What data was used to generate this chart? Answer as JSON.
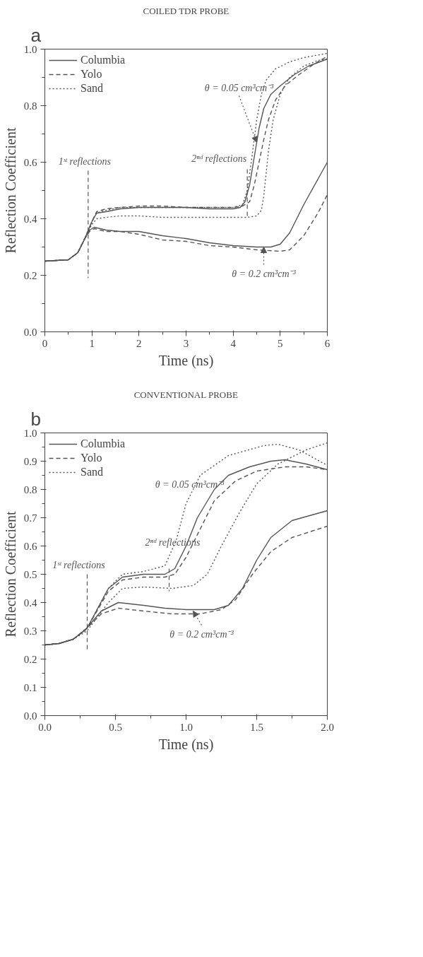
{
  "chart_data": [
    {
      "type": "line",
      "title": "COILED TDR PROBE",
      "xlabel": "Time (ns)",
      "ylabel": "Reflection Coefficient",
      "xlim": [
        0,
        6
      ],
      "ylim": [
        0,
        1
      ],
      "xticks": [
        0,
        1,
        2,
        3,
        4,
        5,
        6
      ],
      "yticks": [
        {
          "value": 0,
          "label": "0.0"
        },
        {
          "value": 0.2,
          "label": "0.2"
        },
        {
          "value": 0.4,
          "label": "0.4"
        },
        {
          "value": 0.6,
          "label": "0.6"
        },
        {
          "value": 0.8,
          "label": "0.8"
        },
        {
          "value": 1,
          "label": "1.0"
        }
      ],
      "grid": false,
      "legend": "top left",
      "annotations": [
        "a",
        {
          "text": "θ = 0.05 cm³cm⁻³",
          "x": 4.5,
          "y": 0.67
        },
        {
          "text": "θ = 0.2 cm³cm⁻³",
          "x": 4.65,
          "y": 0.3
        }
      ],
      "ref_lines": [
        {
          "axis": "x",
          "value": 0.92,
          "label": "1ˢᵗ reflections",
          "color": "#555555",
          "line_style": "dashed"
        },
        {
          "axis": "x",
          "value": 4.3,
          "label": "2ⁿᵈ reflections",
          "color": "#555555",
          "line_style": "dashed"
        }
      ],
      "series": [
        {
          "name": "Columbia",
          "color": "#555555",
          "line_style": "solid",
          "x": [
            0,
            0.5,
            0.7,
            0.85,
            1.0,
            1.1,
            1.3,
            1.6,
            2.0,
            2.5,
            3.0,
            3.5,
            4.0,
            4.15,
            4.25,
            4.35,
            4.45,
            4.55,
            4.65,
            4.8,
            5.0,
            5.3,
            5.6,
            6.0
          ],
          "values": [
            0.25,
            0.255,
            0.28,
            0.33,
            0.39,
            0.42,
            0.425,
            0.435,
            0.44,
            0.44,
            0.44,
            0.435,
            0.435,
            0.44,
            0.46,
            0.52,
            0.62,
            0.72,
            0.79,
            0.84,
            0.87,
            0.91,
            0.94,
            0.965
          ]
        },
        {
          "name": "Yolo",
          "color": "#555555",
          "line_style": "dashed",
          "x": [
            0,
            0.5,
            0.7,
            0.85,
            1.0,
            1.1,
            1.3,
            1.6,
            2.0,
            2.5,
            3.0,
            3.5,
            4.0,
            4.2,
            4.35,
            4.45,
            4.55,
            4.65,
            4.75,
            4.9,
            5.1,
            5.4,
            5.7,
            6.0
          ],
          "values": [
            0.25,
            0.255,
            0.28,
            0.33,
            0.39,
            0.425,
            0.435,
            0.44,
            0.445,
            0.445,
            0.44,
            0.44,
            0.44,
            0.445,
            0.46,
            0.52,
            0.6,
            0.68,
            0.75,
            0.82,
            0.87,
            0.91,
            0.945,
            0.975
          ]
        },
        {
          "name": "Sand",
          "color": "#555555",
          "line_style": "dotted",
          "x": [
            0,
            0.5,
            0.7,
            0.85,
            1.0,
            1.1,
            1.3,
            1.6,
            2.0,
            2.5,
            3.0,
            3.5,
            4.0,
            4.2,
            4.3,
            4.4,
            4.5,
            4.6,
            4.7,
            4.9,
            5.2,
            5.5,
            6.0
          ],
          "values": [
            0.25,
            0.255,
            0.28,
            0.33,
            0.39,
            0.42,
            0.43,
            0.44,
            0.44,
            0.44,
            0.44,
            0.44,
            0.44,
            0.45,
            0.5,
            0.62,
            0.75,
            0.84,
            0.89,
            0.93,
            0.955,
            0.97,
            0.985
          ]
        },
        {
          "color": "#555555",
          "line_style": "dotted",
          "x": [
            0,
            0.5,
            0.7,
            0.85,
            1.0,
            1.1,
            1.3,
            1.6,
            2.0,
            2.5,
            3.0,
            3.5,
            4.0,
            4.3,
            4.5,
            4.6,
            4.65,
            4.7,
            4.75,
            4.85,
            5.0,
            5.2,
            5.5,
            5.8,
            6.0
          ],
          "values": [
            0.25,
            0.255,
            0.28,
            0.33,
            0.38,
            0.4,
            0.405,
            0.41,
            0.41,
            0.405,
            0.405,
            0.405,
            0.405,
            0.405,
            0.41,
            0.43,
            0.48,
            0.56,
            0.64,
            0.75,
            0.84,
            0.9,
            0.94,
            0.96,
            0.965
          ]
        },
        {
          "color": "#555555",
          "line_style": "solid",
          "x": [
            0,
            0.5,
            0.7,
            0.85,
            0.95,
            1.05,
            1.3,
            1.6,
            2.0,
            2.5,
            3.0,
            3.5,
            4.0,
            4.5,
            4.8,
            5.0,
            5.2,
            5.5,
            5.8,
            6.0
          ],
          "values": [
            0.25,
            0.255,
            0.28,
            0.33,
            0.36,
            0.37,
            0.36,
            0.355,
            0.355,
            0.34,
            0.33,
            0.315,
            0.305,
            0.3,
            0.3,
            0.31,
            0.35,
            0.45,
            0.54,
            0.6
          ]
        },
        {
          "color": "#555555",
          "line_style": "dashed",
          "x": [
            0,
            0.5,
            0.7,
            0.85,
            0.95,
            1.05,
            1.3,
            1.6,
            2.0,
            2.5,
            3.0,
            3.5,
            4.0,
            4.5,
            5.0,
            5.2,
            5.5,
            5.8,
            6.0
          ],
          "values": [
            0.25,
            0.255,
            0.28,
            0.33,
            0.355,
            0.365,
            0.355,
            0.355,
            0.345,
            0.325,
            0.32,
            0.305,
            0.3,
            0.29,
            0.285,
            0.29,
            0.34,
            0.42,
            0.485
          ]
        }
      ]
    },
    {
      "type": "line",
      "title": "CONVENTIONAL PROBE",
      "xlabel": "Time (ns)",
      "ylabel": "Reflection Coefficient",
      "xlim": [
        0,
        2
      ],
      "ylim": [
        0,
        1
      ],
      "xticks": [
        {
          "value": 0,
          "label": "0.0"
        },
        {
          "value": 0.5,
          "label": "0.5"
        },
        {
          "value": 1,
          "label": "1.0"
        },
        {
          "value": 1.5,
          "label": "1.5"
        },
        {
          "value": 2,
          "label": "2.0"
        }
      ],
      "yticks": [
        {
          "value": 0,
          "label": "0.0"
        },
        0.1,
        0.2,
        0.3,
        0.4,
        0.5,
        0.6,
        0.7,
        0.8,
        0.9,
        {
          "value": 1,
          "label": "1.0"
        }
      ],
      "grid": false,
      "legend": "top left",
      "annotations": [
        "b",
        {
          "text": "θ = 0.05 cm³cm⁻³",
          "x": 1.2,
          "y": 0.8
        },
        {
          "text": "θ = 0.2 cm³cm⁻³",
          "x": 1.05,
          "y": 0.37
        }
      ],
      "ref_lines": [
        {
          "axis": "x",
          "value": 0.3,
          "label": "1ˢᵗ reflections",
          "color": "#555555",
          "line_style": "dashed"
        },
        {
          "axis": "x",
          "value": 0.88,
          "label": "2ⁿᵈ reflections",
          "color": "#555555",
          "line_style": "dashed"
        }
      ],
      "series": [
        {
          "name": "Columbia",
          "color": "#555555",
          "line_style": "solid",
          "x": [
            0,
            0.1,
            0.2,
            0.3,
            0.45,
            0.55,
            0.7,
            0.85,
            0.92,
            1.0,
            1.08,
            1.2,
            1.3,
            1.45,
            1.6,
            1.7,
            1.85,
            2.0
          ],
          "values": [
            0.25,
            0.255,
            0.27,
            0.31,
            0.45,
            0.49,
            0.5,
            0.5,
            0.52,
            0.6,
            0.7,
            0.8,
            0.85,
            0.88,
            0.9,
            0.905,
            0.89,
            0.87
          ]
        },
        {
          "name": "Yolo",
          "color": "#555555",
          "line_style": "dashed",
          "x": [
            0,
            0.1,
            0.2,
            0.3,
            0.45,
            0.55,
            0.7,
            0.85,
            0.92,
            1.0,
            1.1,
            1.2,
            1.35,
            1.5,
            1.7,
            1.85,
            2.0
          ],
          "values": [
            0.25,
            0.255,
            0.27,
            0.31,
            0.44,
            0.48,
            0.49,
            0.49,
            0.5,
            0.56,
            0.66,
            0.76,
            0.83,
            0.865,
            0.88,
            0.88,
            0.87
          ]
        },
        {
          "name": "Sand",
          "color": "#555555",
          "line_style": "dotted",
          "x": [
            0,
            0.1,
            0.2,
            0.3,
            0.45,
            0.55,
            0.7,
            0.85,
            0.93,
            1.0,
            1.1,
            1.3,
            1.55,
            1.65,
            1.8,
            2.0
          ],
          "values": [
            0.25,
            0.255,
            0.27,
            0.31,
            0.45,
            0.5,
            0.51,
            0.53,
            0.62,
            0.75,
            0.85,
            0.92,
            0.955,
            0.96,
            0.94,
            0.885
          ]
        },
        {
          "color": "#555555",
          "line_style": "dotted",
          "x": [
            0,
            0.1,
            0.2,
            0.3,
            0.45,
            0.55,
            0.7,
            0.9,
            1.05,
            1.15,
            1.25,
            1.38,
            1.5,
            1.65,
            1.85,
            2.0
          ],
          "values": [
            0.25,
            0.255,
            0.27,
            0.3,
            0.4,
            0.45,
            0.455,
            0.45,
            0.46,
            0.5,
            0.6,
            0.72,
            0.82,
            0.89,
            0.94,
            0.965
          ]
        },
        {
          "color": "#555555",
          "line_style": "solid",
          "x": [
            0,
            0.1,
            0.2,
            0.28,
            0.4,
            0.52,
            0.7,
            0.85,
            1.0,
            1.2,
            1.3,
            1.4,
            1.5,
            1.6,
            1.75,
            2.0
          ],
          "values": [
            0.25,
            0.255,
            0.27,
            0.3,
            0.37,
            0.4,
            0.39,
            0.38,
            0.375,
            0.375,
            0.39,
            0.45,
            0.55,
            0.63,
            0.69,
            0.725
          ]
        },
        {
          "color": "#555555",
          "line_style": "dashed",
          "x": [
            0,
            0.1,
            0.2,
            0.28,
            0.4,
            0.52,
            0.7,
            0.9,
            1.1,
            1.25,
            1.35,
            1.47,
            1.6,
            1.75,
            2.0
          ],
          "values": [
            0.25,
            0.255,
            0.27,
            0.3,
            0.36,
            0.38,
            0.37,
            0.36,
            0.36,
            0.375,
            0.41,
            0.5,
            0.58,
            0.63,
            0.67
          ]
        }
      ]
    }
  ]
}
